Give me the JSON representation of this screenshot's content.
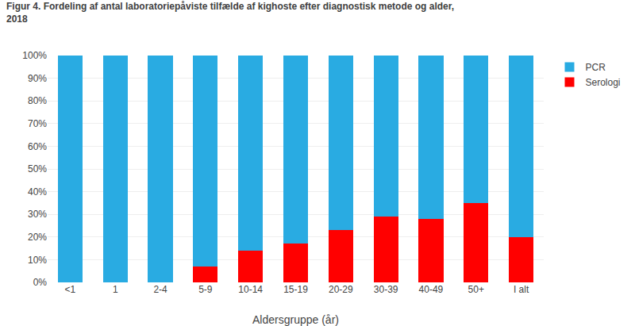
{
  "chart_data": {
    "type": "bar",
    "stacked": true,
    "title": "Figur 4. Fordeling af antal laboratoriepåviste tilfælde af kighoste efter diagnostisk metode og alder,\n2018",
    "xlabel": "Aldersgruppe (år)",
    "categories": [
      "<1",
      "1",
      "2-4",
      "5-9",
      "10-14",
      "15-19",
      "20-29",
      "30-39",
      "40-49",
      "50+",
      "I alt"
    ],
    "series": [
      {
        "name": "Serologi",
        "color": "#FF0000",
        "values": [
          0,
          0,
          0,
          7,
          14,
          17,
          23,
          29,
          28,
          35,
          20
        ]
      },
      {
        "name": "PCR",
        "color": "#29ABE2",
        "values": [
          100,
          100,
          100,
          93,
          86,
          83,
          77,
          71,
          72,
          65,
          80
        ]
      }
    ],
    "ylim": [
      0,
      100
    ],
    "yticks": [
      {
        "value": 0,
        "label": "0%"
      },
      {
        "value": 10,
        "label": "10%"
      },
      {
        "value": 20,
        "label": "20%"
      },
      {
        "value": 30,
        "label": "30%"
      },
      {
        "value": 40,
        "label": "40%"
      },
      {
        "value": 50,
        "label": "50%"
      },
      {
        "value": 60,
        "label": "60%"
      },
      {
        "value": 70,
        "label": "70%"
      },
      {
        "value": 80,
        "label": "80%"
      },
      {
        "value": 90,
        "label": "90%"
      },
      {
        "value": 100,
        "label": "100%"
      }
    ],
    "grid": true,
    "legend": "upper right"
  }
}
